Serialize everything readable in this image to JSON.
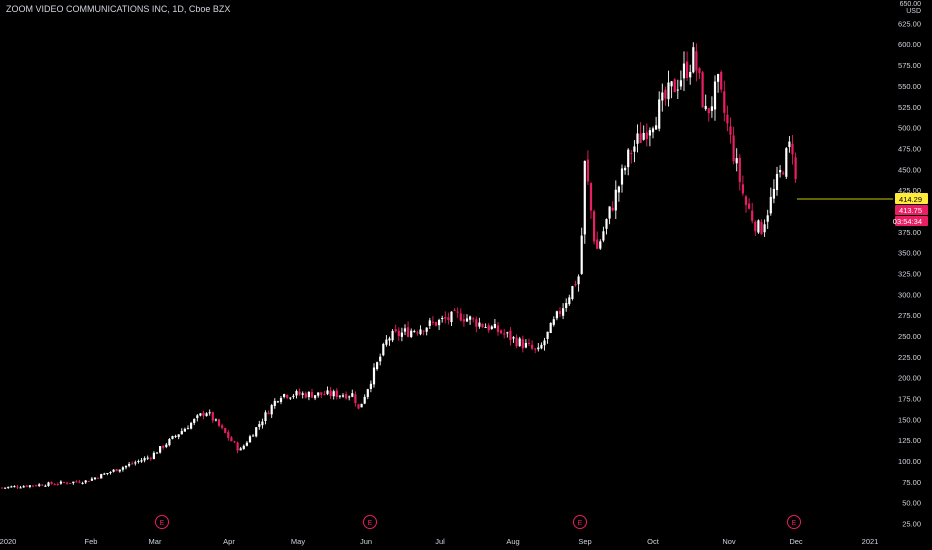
{
  "header": {
    "symbol_title": "ZOOM VIDEO COMMUNICATIONS INC, 1D, Cboe BZX"
  },
  "price_axis": {
    "currency": "USD",
    "top_label": "650.00"
  },
  "badges": {
    "last_price": "414.29",
    "second_price": "413.75",
    "countdown": "03:54:34"
  },
  "earnings_marker": {
    "label": "E"
  },
  "colors": {
    "background": "#000000",
    "up_candle": "#ffffff",
    "down_candle": "#e91e63",
    "last_price_line": "#c8c800",
    "last_price_badge": "#ffeb3b",
    "second_badge": "#e91e63",
    "earnings_marker": "#e91e63",
    "axis_text": "#d1d4dc"
  },
  "chart_data": {
    "type": "candlestick",
    "title": "ZOOM VIDEO COMMUNICATIONS INC, 1D, Cboe BZX",
    "xlabel": "",
    "ylabel": "",
    "ylim": [
      15,
      655
    ],
    "y_ticks": [
      25,
      50,
      75,
      100,
      125,
      150,
      175,
      200,
      225,
      250,
      275,
      300,
      325,
      350,
      375,
      400,
      425,
      450,
      475,
      500,
      525,
      550,
      575,
      600,
      625
    ],
    "x_tick_labels": [
      "2020",
      "Feb",
      "Mar",
      "Apr",
      "May",
      "Jun",
      "Jul",
      "Aug",
      "Sep",
      "Oct",
      "Nov",
      "Dec",
      "2021"
    ],
    "earnings_dates": [
      "Mar",
      "Jun",
      "Sep",
      "Dec"
    ],
    "key_points": [
      {
        "date": "2020-01-02",
        "close": 68
      },
      {
        "date": "2020-01-31",
        "close": 76
      },
      {
        "date": "2020-02-28",
        "close": 105
      },
      {
        "date": "2020-03-23",
        "close": 160
      },
      {
        "date": "2020-04-14",
        "close": 112
      },
      {
        "date": "2020-04-23",
        "close": 180
      },
      {
        "date": "2020-05-29",
        "close": 180
      },
      {
        "date": "2020-06-05",
        "close": 160
      },
      {
        "date": "2020-06-19",
        "close": 248
      },
      {
        "date": "2020-07-16",
        "close": 275
      },
      {
        "date": "2020-07-31",
        "close": 255
      },
      {
        "date": "2020-08-11",
        "close": 230
      },
      {
        "date": "2020-08-31",
        "close": 325
      },
      {
        "date": "2020-09-01",
        "close": 460
      },
      {
        "date": "2020-09-08",
        "close": 350
      },
      {
        "date": "2020-09-30",
        "close": 470
      },
      {
        "date": "2020-10-19",
        "close": 585
      },
      {
        "date": "2020-10-23",
        "close": 515
      },
      {
        "date": "2020-10-28",
        "close": 550
      },
      {
        "date": "2020-11-09",
        "close": 410
      },
      {
        "date": "2020-11-13",
        "close": 375
      },
      {
        "date": "2020-11-27",
        "close": 485
      },
      {
        "date": "2020-12-01",
        "close": 414.29
      }
    ],
    "last_price": 414.29,
    "grid": false,
    "legend": "none"
  }
}
